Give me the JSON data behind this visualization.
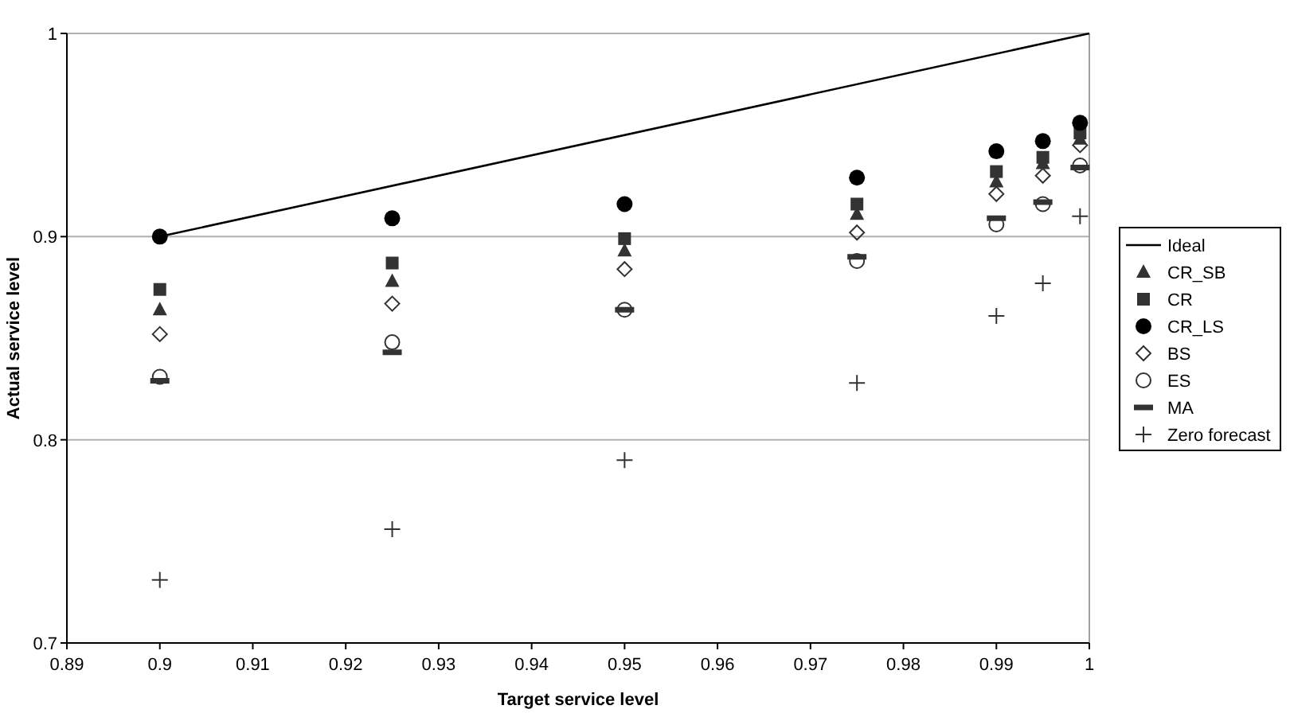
{
  "chart_data": {
    "type": "scatter",
    "xlabel": "Target service level",
    "ylabel": "Actual service level",
    "xlim": [
      0.89,
      1
    ],
    "xticks": [
      0.89,
      0.9,
      0.91,
      0.92,
      0.93,
      0.94,
      0.95,
      0.96,
      0.97,
      0.98,
      0.99,
      1
    ],
    "ylim": [
      0.7,
      1
    ],
    "yticks": [
      0.7,
      0.8,
      0.9,
      1
    ],
    "grid": "y",
    "legend": "right",
    "x": [
      0.9,
      0.925,
      0.95,
      0.975,
      0.99,
      0.995,
      0.999
    ],
    "series": [
      {
        "name": "Ideal",
        "type": "line",
        "color": "#000000",
        "marker": "none",
        "line_style": "solid",
        "x": [
          0.9,
          1
        ],
        "values": [
          0.9,
          1
        ]
      },
      {
        "name": "CR_SB",
        "color": "#333333",
        "marker": "triangle",
        "values": [
          0.864,
          0.878,
          0.893,
          0.911,
          0.927,
          0.936,
          0.948
        ]
      },
      {
        "name": "CR",
        "color": "#333333",
        "marker": "square",
        "values": [
          0.874,
          0.887,
          0.899,
          0.916,
          0.932,
          0.939,
          0.951
        ]
      },
      {
        "name": "CR_LS",
        "color": "#000000",
        "marker": "circle",
        "values": [
          0.9,
          0.909,
          0.916,
          0.929,
          0.942,
          0.947,
          0.956
        ]
      },
      {
        "name": "BS",
        "color": "#333333",
        "marker": "diamond-open",
        "values": [
          0.852,
          0.867,
          0.884,
          0.902,
          0.921,
          0.93,
          0.945
        ]
      },
      {
        "name": "ES",
        "color": "#333333",
        "marker": "circle-open",
        "values": [
          0.831,
          0.848,
          0.864,
          0.888,
          0.906,
          0.916,
          0.935
        ]
      },
      {
        "name": "MA",
        "color": "#333333",
        "values": [
          0.829,
          0.843,
          0.864,
          0.89,
          0.909,
          0.917,
          0.934
        ]
      },
      {
        "name": "Zero forecast",
        "color": "#333333",
        "marker": "cross",
        "values": [
          0.731,
          0.756,
          0.79,
          0.828,
          0.861,
          0.877,
          0.91
        ]
      }
    ]
  }
}
